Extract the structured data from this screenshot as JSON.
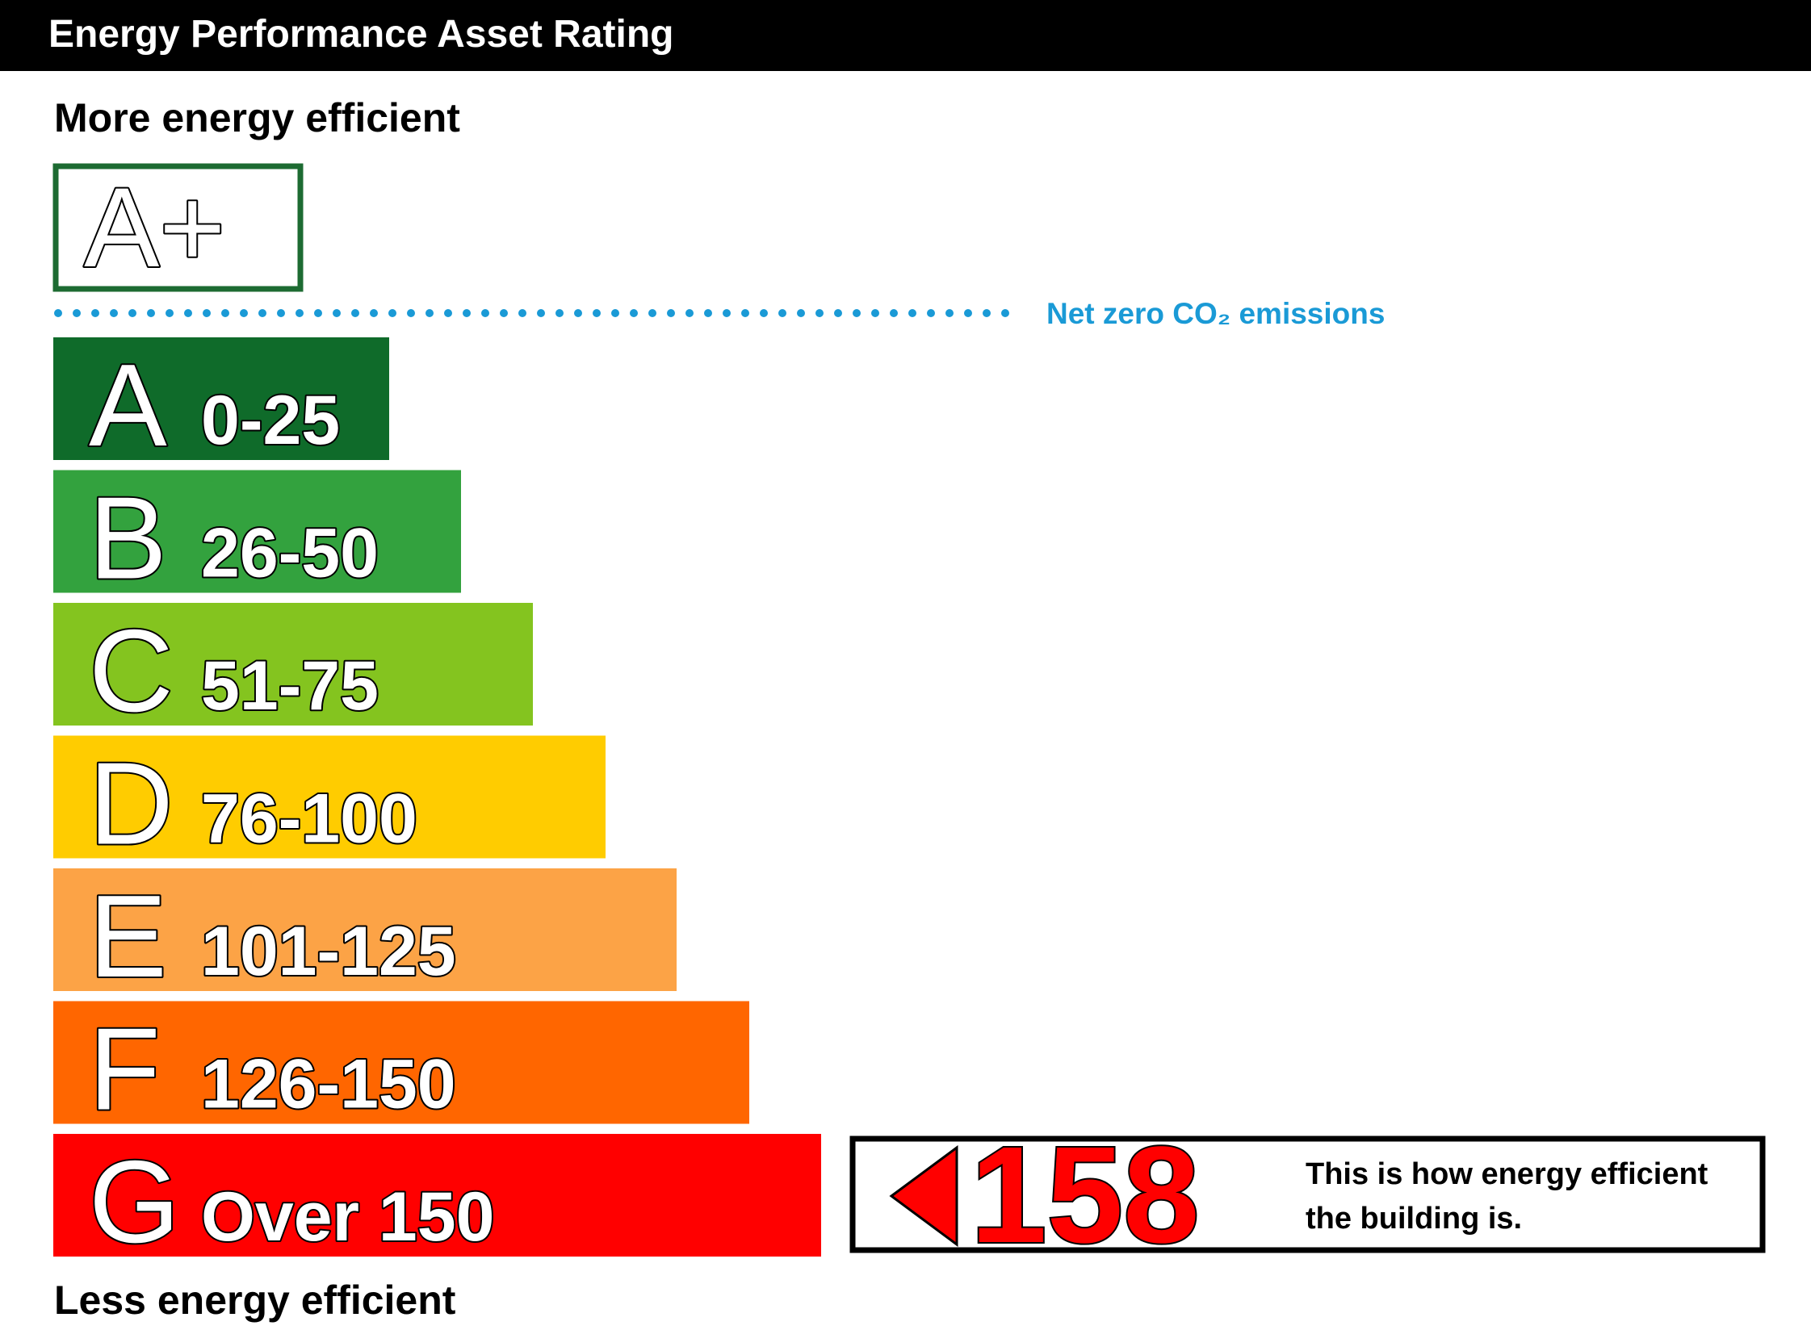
{
  "header": {
    "title": "Energy Performance Asset Rating"
  },
  "top_label": "More energy efficient",
  "bottom_label": "Less energy efficient",
  "aplus": {
    "label": "A+",
    "color": "#1d6b32"
  },
  "net_zero": {
    "text": "Net zero CO₂ emissions",
    "color": "#1a9ad6"
  },
  "bands": [
    {
      "letter": "A",
      "range": "0-25",
      "color": "#0f6b2a"
    },
    {
      "letter": "B",
      "range": "26-50",
      "color": "#33a23e"
    },
    {
      "letter": "C",
      "range": "51-75",
      "color": "#84c41f"
    },
    {
      "letter": "D",
      "range": "76-100",
      "color": "#ffcc00"
    },
    {
      "letter": "E",
      "range": "101-125",
      "color": "#fca346"
    },
    {
      "letter": "F",
      "range": "126-150",
      "color": "#ff6600"
    },
    {
      "letter": "G",
      "range": "Over 150",
      "color": "#ff0000"
    }
  ],
  "rating": {
    "value": "158",
    "color": "#ff0000",
    "text": [
      "This is how energy efficient",
      "the building is."
    ]
  }
}
